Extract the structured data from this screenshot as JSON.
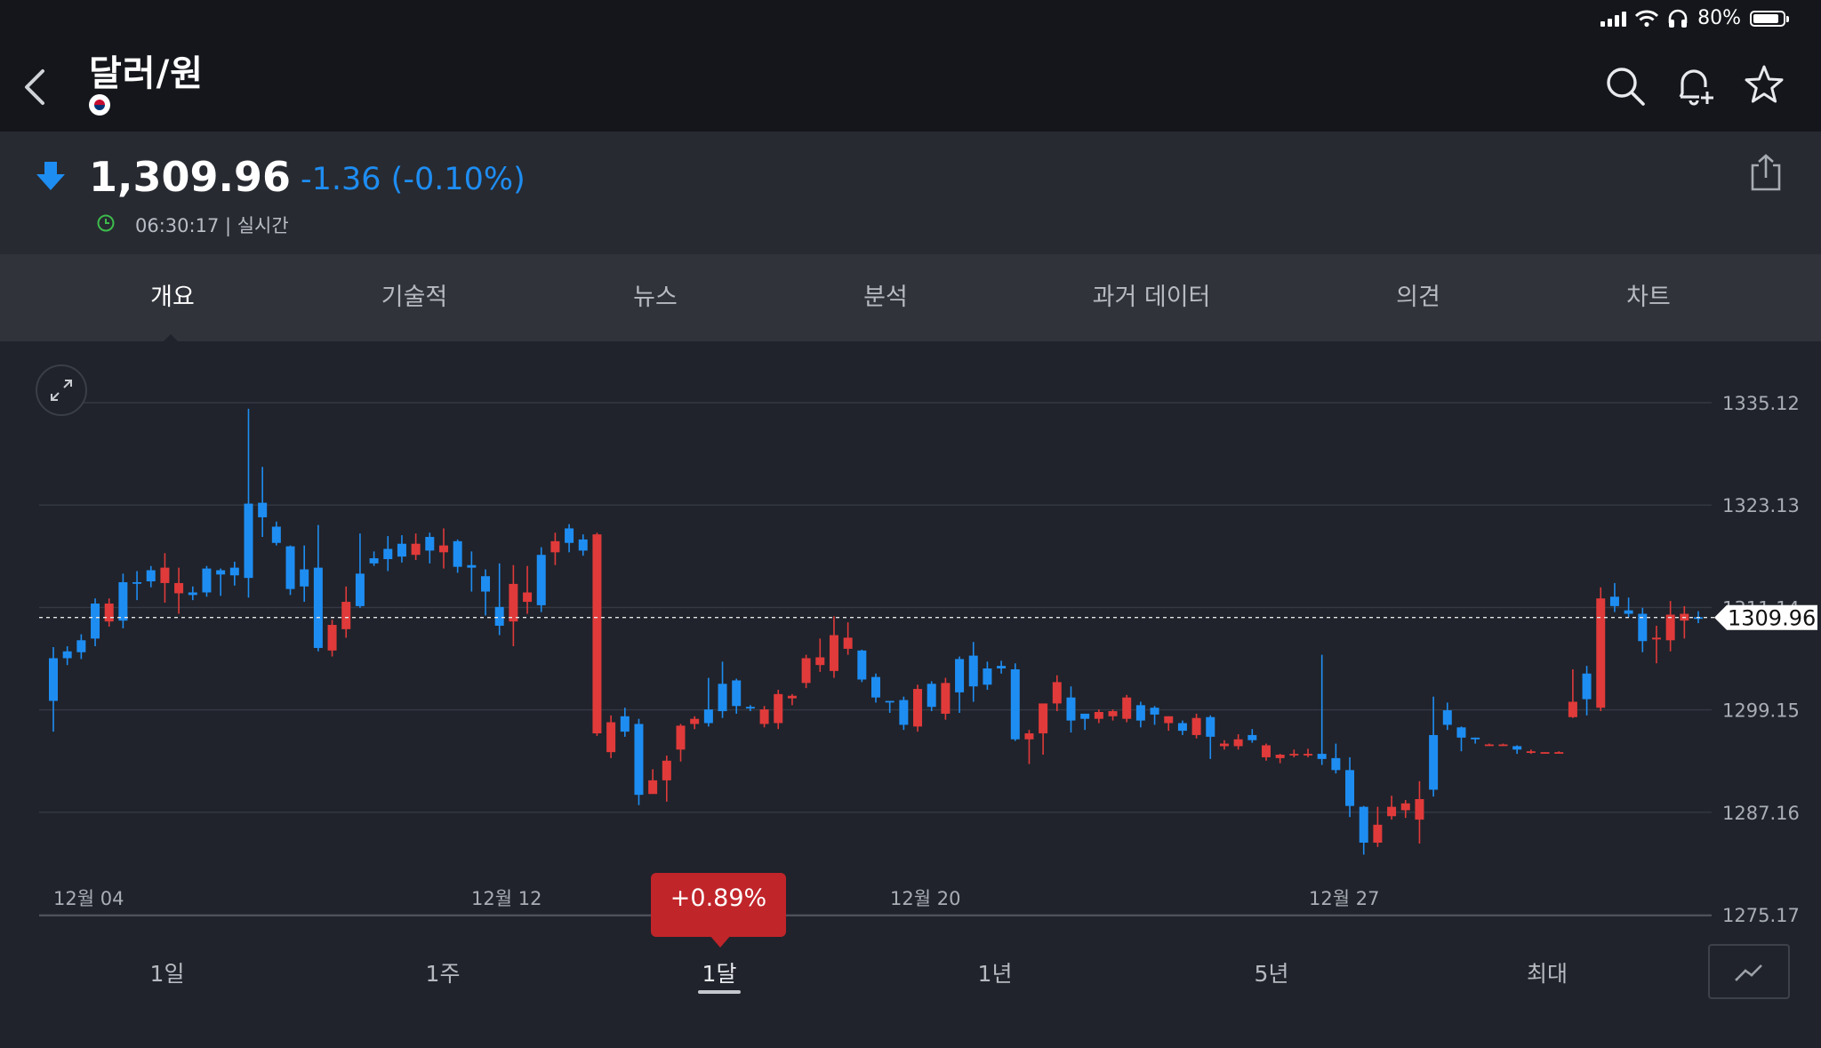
{
  "status": {
    "battery": "80%"
  },
  "header": {
    "title": "달러/원"
  },
  "quote": {
    "price": "1,309.96",
    "change": "-1.36 (-0.10%)",
    "time": "06:30:17 | 실시간",
    "direction": "down",
    "down_color": "#1e8df2",
    "up_color": "#e03a3a"
  },
  "tabs": [
    "개요",
    "기술적",
    "뉴스",
    "분석",
    "과거 데이터",
    "의견",
    "차트"
  ],
  "active_tab": "개요",
  "badge": "+0.89%",
  "periods": [
    "1일",
    "1주",
    "1달",
    "1년",
    "5년",
    "최대"
  ],
  "active_period": "1달",
  "chart_data": {
    "type": "candlestick",
    "y_ticks": [
      "1335.12",
      "1323.13",
      "1311.14",
      "1299.15",
      "1287.16",
      "1275.17"
    ],
    "x_ticks": [
      "12월 04",
      "12월 12",
      "12월 20",
      "12월 27"
    ],
    "current_price_label": "1309.96",
    "ylim": [
      1275.17,
      1335.12
    ],
    "candles": [
      [
        1305.2,
        1300.2,
        1296.6,
        1306.5
      ],
      [
        1306.0,
        1305.2,
        1304.4,
        1306.6
      ],
      [
        1307.3,
        1305.9,
        1305.1,
        1308.0
      ],
      [
        1311.6,
        1307.5,
        1306.6,
        1312.2
      ],
      [
        1309.5,
        1311.6,
        1308.9,
        1312.2
      ],
      [
        1314.1,
        1309.6,
        1308.7,
        1315.1
      ],
      [
        1314.1,
        1314.0,
        1312.0,
        1315.4
      ],
      [
        1315.5,
        1314.2,
        1313.5,
        1316.0
      ],
      [
        1314.0,
        1315.8,
        1311.7,
        1317.5
      ],
      [
        1312.8,
        1314.0,
        1310.4,
        1315.8
      ],
      [
        1312.9,
        1312.6,
        1312.0,
        1313.6
      ],
      [
        1315.7,
        1312.9,
        1312.4,
        1316.0
      ],
      [
        1315.5,
        1315.0,
        1312.5,
        1315.7
      ],
      [
        1315.8,
        1314.9,
        1313.7,
        1316.5
      ],
      [
        1323.3,
        1314.6,
        1312.3,
        1334.4
      ],
      [
        1323.4,
        1321.7,
        1319.4,
        1327.6
      ],
      [
        1320.6,
        1318.7,
        1318.4,
        1321.2
      ],
      [
        1318.3,
        1313.3,
        1312.6,
        1318.4
      ],
      [
        1315.6,
        1313.6,
        1311.8,
        1318.4
      ],
      [
        1315.8,
        1306.4,
        1306.0,
        1320.8
      ],
      [
        1306.1,
        1309.1,
        1305.4,
        1309.7
      ],
      [
        1308.6,
        1311.8,
        1307.6,
        1313.6
      ],
      [
        1315.1,
        1311.3,
        1311.1,
        1319.8
      ],
      [
        1316.9,
        1316.3,
        1316.0,
        1317.7
      ],
      [
        1318.0,
        1316.8,
        1315.4,
        1319.5
      ],
      [
        1318.6,
        1317.1,
        1316.4,
        1319.6
      ],
      [
        1317.3,
        1318.6,
        1316.7,
        1319.8
      ],
      [
        1319.4,
        1317.8,
        1316.3,
        1319.9
      ],
      [
        1317.6,
        1318.4,
        1315.7,
        1320.4
      ],
      [
        1318.9,
        1315.9,
        1315.2,
        1319.1
      ],
      [
        1316.1,
        1315.8,
        1313.0,
        1317.7
      ],
      [
        1314.8,
        1313.0,
        1310.2,
        1315.6
      ],
      [
        1311.2,
        1309.0,
        1307.9,
        1316.3
      ],
      [
        1309.5,
        1313.9,
        1306.6,
        1316.1
      ],
      [
        1311.8,
        1312.9,
        1310.4,
        1316.0
      ],
      [
        1317.3,
        1311.4,
        1310.6,
        1318.2
      ],
      [
        1317.6,
        1318.9,
        1316.1,
        1319.9
      ],
      [
        1320.4,
        1318.7,
        1317.6,
        1320.9
      ],
      [
        1319.1,
        1317.8,
        1317.2,
        1319.7
      ],
      [
        1296.4,
        1319.7,
        1296.1,
        1319.9
      ],
      [
        1294.2,
        1297.7,
        1293.5,
        1298.5
      ],
      [
        1298.4,
        1296.6,
        1296.0,
        1299.4
      ],
      [
        1297.5,
        1289.2,
        1288.0,
        1298.1
      ],
      [
        1289.3,
        1290.9,
        1289.8,
        1292.2
      ],
      [
        1290.9,
        1293.2,
        1288.4,
        1293.8
      ],
      [
        1294.5,
        1297.3,
        1293.1,
        1297.5
      ],
      [
        1297.5,
        1298.1,
        1296.9,
        1298.4
      ],
      [
        1299.2,
        1297.6,
        1297.2,
        1302.9
      ],
      [
        1302.2,
        1299.0,
        1298.2,
        1304.8
      ],
      [
        1302.6,
        1299.6,
        1298.7,
        1302.8
      ],
      [
        1299.5,
        1299.4,
        1299.0,
        1299.7
      ],
      [
        1297.5,
        1299.2,
        1297.1,
        1299.6
      ],
      [
        1297.6,
        1301.0,
        1296.9,
        1301.5
      ],
      [
        1300.5,
        1300.8,
        1299.7,
        1301.0
      ],
      [
        1302.3,
        1305.2,
        1301.7,
        1305.6
      ],
      [
        1304.4,
        1305.3,
        1303.6,
        1307.5
      ],
      [
        1303.7,
        1307.9,
        1302.9,
        1310.1
      ],
      [
        1306.3,
        1307.6,
        1305.6,
        1309.4
      ],
      [
        1306.1,
        1302.7,
        1302.4,
        1306.2
      ],
      [
        1303.0,
        1300.6,
        1300.0,
        1303.4
      ],
      [
        1300.2,
        1300.1,
        1298.8,
        1300.2
      ],
      [
        1300.3,
        1297.4,
        1296.8,
        1300.7
      ],
      [
        1297.2,
        1301.6,
        1296.6,
        1302.1
      ],
      [
        1302.2,
        1299.5,
        1299.0,
        1302.5
      ],
      [
        1298.7,
        1302.3,
        1298.0,
        1302.9
      ],
      [
        1305.1,
        1301.2,
        1298.8,
        1305.4
      ],
      [
        1305.5,
        1301.9,
        1300.1,
        1307.1
      ],
      [
        1304.0,
        1302.1,
        1301.5,
        1304.8
      ],
      [
        1304.3,
        1304.0,
        1303.4,
        1304.9
      ],
      [
        1303.9,
        1295.7,
        1295.5,
        1304.6
      ],
      [
        1295.7,
        1296.4,
        1292.8,
        1296.8
      ],
      [
        1296.4,
        1299.9,
        1293.9,
        1299.6
      ],
      [
        1299.9,
        1302.4,
        1299.0,
        1303.2
      ],
      [
        1300.6,
        1297.9,
        1296.5,
        1301.9
      ],
      [
        1298.7,
        1298.1,
        1296.8,
        1298.7
      ],
      [
        1298.1,
        1298.9,
        1297.6,
        1299.2
      ],
      [
        1298.4,
        1299.0,
        1297.9,
        1299.2
      ],
      [
        1298.1,
        1300.6,
        1297.7,
        1300.9
      ],
      [
        1299.7,
        1297.9,
        1297.1,
        1300.1
      ],
      [
        1299.4,
        1298.6,
        1297.4,
        1299.6
      ],
      [
        1297.6,
        1298.4,
        1296.7,
        1298.4
      ],
      [
        1297.6,
        1296.7,
        1296.2,
        1297.9
      ],
      [
        1296.2,
        1298.2,
        1295.8,
        1298.7
      ],
      [
        1298.3,
        1296.0,
        1293.4,
        1298.5
      ],
      [
        1294.9,
        1295.2,
        1294.5,
        1295.6
      ],
      [
        1294.9,
        1295.7,
        1294.5,
        1296.3
      ],
      [
        1296.2,
        1295.6,
        1295.3,
        1296.9
      ],
      [
        1293.6,
        1295.0,
        1293.2,
        1295.2
      ],
      [
        1293.5,
        1293.9,
        1292.9,
        1294.0
      ],
      [
        1294.0,
        1294.0,
        1293.6,
        1294.5
      ],
      [
        1294.0,
        1294.0,
        1293.6,
        1294.6
      ],
      [
        1294.0,
        1293.4,
        1292.7,
        1305.6
      ],
      [
        1293.5,
        1292.1,
        1291.7,
        1295.2
      ],
      [
        1292.1,
        1287.9,
        1286.6,
        1293.6
      ],
      [
        1287.8,
        1283.6,
        1282.2,
        1287.9
      ],
      [
        1283.6,
        1285.7,
        1283.1,
        1287.8
      ],
      [
        1286.7,
        1287.8,
        1286.3,
        1289.1
      ],
      [
        1287.4,
        1288.2,
        1286.5,
        1288.6
      ],
      [
        1286.3,
        1288.7,
        1283.5,
        1290.8
      ],
      [
        1296.2,
        1289.8,
        1289.0,
        1300.7
      ],
      [
        1299.1,
        1297.4,
        1296.8,
        1300.0
      ],
      [
        1297.1,
        1295.9,
        1294.3,
        1297.2
      ],
      [
        1295.9,
        1295.7,
        1295.2,
        1295.9
      ],
      [
        1295.1,
        1295.1,
        1295.0,
        1295.2
      ],
      [
        1295.1,
        1295.1,
        1295.0,
        1295.2
      ],
      [
        1294.9,
        1294.5,
        1294.0,
        1295.0
      ],
      [
        1294.3,
        1294.3,
        1294.0,
        1294.5
      ],
      [
        1294.2,
        1294.2,
        1294.1,
        1294.2
      ],
      [
        1294.2,
        1294.2,
        1294.1,
        1294.3
      ],
      [
        1298.3,
        1300.1,
        1298.2,
        1303.9
      ],
      [
        1303.4,
        1300.4,
        1298.5,
        1304.3
      ],
      [
        1299.4,
        1312.2,
        1299.0,
        1313.5
      ],
      [
        1312.4,
        1311.3,
        1310.6,
        1314.0
      ],
      [
        1310.8,
        1310.4,
        1310.0,
        1312.3
      ],
      [
        1310.4,
        1307.2,
        1305.9,
        1311.1
      ],
      [
        1307.4,
        1307.6,
        1304.6,
        1309.0
      ],
      [
        1307.3,
        1310.3,
        1306.0,
        1311.9
      ],
      [
        1309.6,
        1310.4,
        1307.5,
        1311.3
      ],
      [
        1310.0,
        1309.8,
        1309.3,
        1310.7
      ]
    ]
  }
}
